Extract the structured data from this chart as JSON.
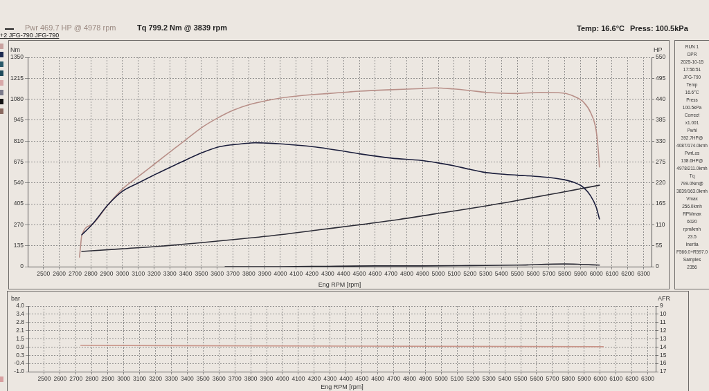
{
  "chart_data": [
    {
      "type": "line",
      "xlabel": "Eng RPM [rpm]",
      "ylabel": "Nm",
      "y2label": "HP",
      "annotations": [
        "Pwr 469.7 HP @ 4978 rpm",
        "Tq 799.2 Nm @ 3839 rpm",
        "+2 JFG-790 JFG-790",
        "Temp: 16.6°C",
        "Press: 100.5kPa"
      ],
      "xlim": [
        2400,
        6350
      ],
      "xticks": [
        2500,
        2600,
        2700,
        2800,
        2900,
        3000,
        3100,
        3200,
        3300,
        3400,
        3500,
        3600,
        3700,
        3800,
        3900,
        4000,
        4100,
        4200,
        4300,
        4400,
        4500,
        4600,
        4700,
        4800,
        4900,
        5000,
        5100,
        5200,
        5300,
        5400,
        5500,
        5600,
        5700,
        5800,
        5900,
        6000,
        6100,
        6200,
        6300
      ],
      "ylim": [
        0,
        1350
      ],
      "yticks": [
        0,
        135,
        270,
        405,
        540,
        675,
        810,
        945,
        1080,
        1215,
        1350
      ],
      "y2lim": [
        0,
        550
      ],
      "y2ticks": [
        0,
        55,
        110,
        165,
        220,
        275,
        330,
        385,
        440,
        495,
        550
      ],
      "grid": true,
      "marker": "none",
      "line_style": "solid",
      "series": [
        {
          "color": "#1b1e3c",
          "x": [
            2742,
            2808,
            2911,
            3000,
            3101,
            3204,
            3306,
            3409,
            3504,
            3600,
            3702,
            3805,
            3839,
            3908,
            4000,
            4098,
            4201,
            4304,
            4400,
            4500,
            4703,
            4891,
            4993,
            5094,
            5196,
            5283,
            5384,
            5500,
            5645,
            5790,
            5862,
            5920,
            5964,
            6000,
            6020
          ],
          "values": [
            205,
            272,
            402,
            486,
            540,
            593,
            643,
            692,
            735,
            770,
            787,
            797,
            799.2,
            797,
            792,
            784,
            774,
            760,
            745,
            728,
            700,
            685,
            670,
            652,
            628,
            610,
            598,
            590,
            580,
            562,
            542,
            510,
            457,
            383,
            308
          ]
        },
        {
          "color": "#b88f88",
          "axis": "y2",
          "x": [
            2728,
            2735,
            2742,
            2808,
            2911,
            3000,
            3101,
            3204,
            3306,
            3409,
            3504,
            3600,
            3702,
            3805,
            3908,
            4000,
            4098,
            4201,
            4304,
            4400,
            4500,
            4703,
            4891,
            4978,
            5094,
            5196,
            5300,
            5384,
            5500,
            5645,
            5790,
            5862,
            5920,
            5964,
            6000,
            6015,
            6020
          ],
          "values": [
            25,
            55,
            81,
            111,
            164,
            204,
            237,
            270,
            303,
            336,
            366,
            390,
            411,
            426,
            436,
            443,
            448,
            452,
            455,
            458,
            461,
            465,
            468,
            469.7,
            467,
            463,
            458,
            456,
            455,
            458,
            456,
            447,
            432,
            405,
            356,
            295,
            262
          ]
        },
        {
          "color": "#2b2b35",
          "axis": "y2",
          "x": [
            2742,
            3000,
            3250,
            3500,
            3750,
            4000,
            4250,
            4500,
            4750,
            4978,
            5250,
            5500,
            5750,
            6020
          ],
          "values": [
            40,
            47,
            54,
            63,
            73,
            84,
            97,
            110,
            124,
            138.6,
            156,
            174,
            193,
            214
          ]
        },
        {
          "color": "#2b2b35",
          "axis": "y2",
          "x": [
            3650,
            4000,
            4300,
            4600,
            4900,
            5200,
            5500,
            5800,
            5900,
            6020
          ],
          "values": [
            0,
            0,
            1,
            2,
            2,
            3,
            4,
            7,
            6,
            4
          ]
        }
      ]
    },
    {
      "type": "line",
      "xlabel": "Eng RPM [rpm]",
      "ylabel": "bar",
      "y2label": "AFR",
      "xlim": [
        2400,
        6350
      ],
      "xticks": [
        2500,
        2600,
        2700,
        2800,
        2900,
        3000,
        3100,
        3200,
        3300,
        3400,
        3500,
        3600,
        3700,
        3800,
        3900,
        4000,
        4100,
        4200,
        4300,
        4400,
        4500,
        4600,
        4700,
        4800,
        4900,
        5000,
        5100,
        5200,
        5300,
        5400,
        5500,
        5600,
        5700,
        5800,
        5900,
        6000,
        6100,
        6200,
        6300
      ],
      "ylim": [
        -1,
        4
      ],
      "yticks": [
        {
          "value": -1,
          "label": "-1.0"
        },
        {
          "value": -0.375,
          "label": "-0.4"
        },
        {
          "value": 0.25,
          "label": "0.3"
        },
        {
          "value": 0.875,
          "label": "0.9"
        },
        1.5,
        {
          "value": 2.125,
          "label": "2.1"
        },
        {
          "value": 2.75,
          "label": "2.8"
        },
        {
          "value": 3.375,
          "label": "3.4"
        },
        {
          "value": 4,
          "label": "4.0"
        }
      ],
      "y2lim": [
        17,
        9
      ],
      "y2ticks": [
        9,
        10,
        11,
        12,
        13,
        14,
        15,
        16,
        17
      ],
      "grid": true,
      "marker": "none",
      "line_style": "solid",
      "series": [
        {
          "color": "#c99488",
          "x": [
            2730,
            6020
          ],
          "values": [
            1.0,
            0.9
          ]
        }
      ]
    },
    {
      "type": "other",
      "annotations": [
        "RUN 1",
        "DPR",
        "2025-10-15",
        "17:56:51",
        "JFG-790",
        "Temp",
        "16.6°C",
        "Press",
        "100.5kPa",
        "Correct",
        "x1.001",
        "Pwhl",
        "392.7HP@",
        "4087/174.0kmh",
        "PwrLos",
        "138.6HP@",
        "4978/211.0kmh",
        "Tq",
        "799.0Nm@",
        "3839/163.0kmh",
        "Vmax",
        "256.0kmh",
        "RPMmax",
        "6020",
        "rpm/kmh",
        "23.5",
        "Inertia",
        "F566.0+R597.0",
        "Samples",
        "2356"
      ]
    }
  ]
}
